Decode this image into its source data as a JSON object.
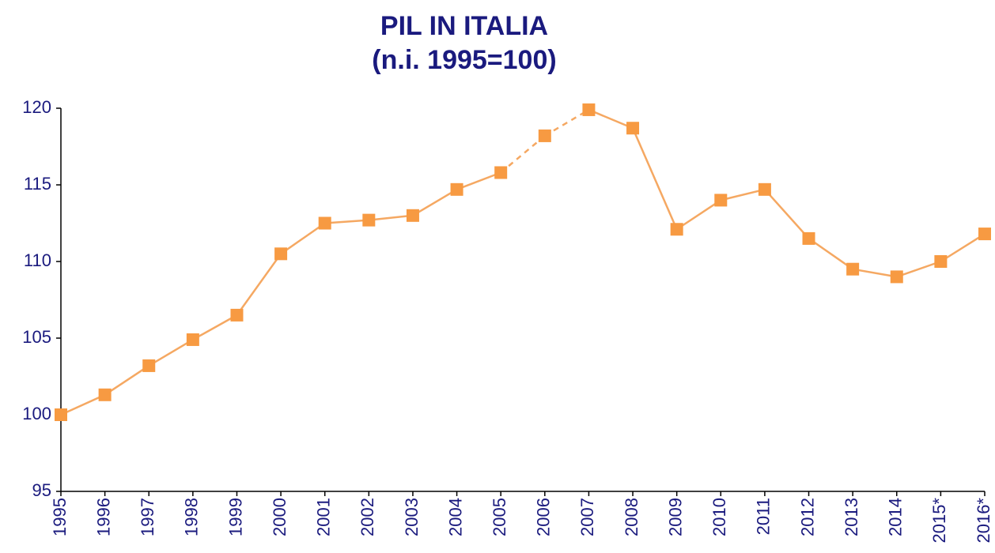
{
  "chart_data": {
    "type": "line",
    "title": "PIL IN ITALIA",
    "subtitle": "(n.i. 1995=100)",
    "categories": [
      "1995",
      "1996",
      "1997",
      "1998",
      "1999",
      "2000",
      "2001",
      "2002",
      "2003",
      "2004",
      "2005",
      "2006",
      "2007",
      "2008",
      "2009",
      "2010",
      "2011",
      "2012",
      "2013",
      "2014",
      "2015*",
      "2016*"
    ],
    "series": [
      {
        "name": "PIL",
        "color": "#f79a42",
        "line_color": "#f5a862",
        "values": [
          100.0,
          101.3,
          103.2,
          104.9,
          106.5,
          110.5,
          112.5,
          112.7,
          113.0,
          114.7,
          115.8,
          118.2,
          119.9,
          118.7,
          112.1,
          114.0,
          114.7,
          111.5,
          109.5,
          109.0,
          110.0,
          111.8
        ]
      }
    ],
    "dashed_categories": [
      "2005",
      "2006",
      "2007"
    ],
    "ylim": [
      95,
      120
    ],
    "yticks": [
      95,
      100,
      105,
      110,
      115,
      120
    ],
    "grid": false
  }
}
